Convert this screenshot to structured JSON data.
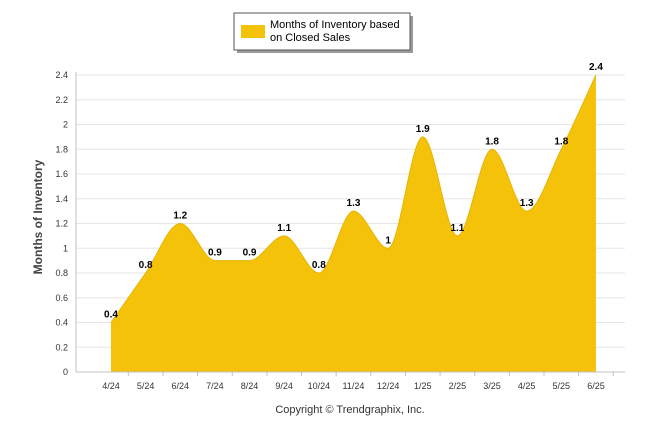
{
  "chart_data": {
    "type": "area",
    "categories": [
      "4/24",
      "5/24",
      "6/24",
      "7/24",
      "8/24",
      "9/24",
      "10/24",
      "11/24",
      "12/24",
      "1/25",
      "2/25",
      "3/25",
      "4/25",
      "5/25",
      "6/25"
    ],
    "series": [
      {
        "name": "Months of Inventory based on Closed Sales",
        "values": [
          0.4,
          0.8,
          1.2,
          0.9,
          0.9,
          1.1,
          0.8,
          1.3,
          1,
          1.9,
          1.1,
          1.8,
          1.3,
          1.8,
          2.4
        ],
        "color": "#f5c20a"
      }
    ],
    "data_labels": [
      "0.4",
      "0.8",
      "1.2",
      "0.9",
      "0.9",
      "1.1",
      "0.8",
      "1.3",
      "1",
      "1.9",
      "1.1",
      "1.8",
      "1.3",
      "1.8",
      "2.4"
    ],
    "ylabel": "Months of Inventory",
    "xlabel": "",
    "ylim": [
      0,
      2.4
    ],
    "yticks": [
      "0",
      "0.2",
      "0.4",
      "0.6",
      "0.8",
      "1",
      "1.2",
      "1.4",
      "1.6",
      "1.8",
      "2",
      "2.2",
      "2.4"
    ],
    "grid": true,
    "legend_position": "top-center"
  },
  "legend": {
    "line1": "Months of Inventory based",
    "line2": "on Closed Sales"
  },
  "footer": "Copyright © Trendgraphix, Inc."
}
